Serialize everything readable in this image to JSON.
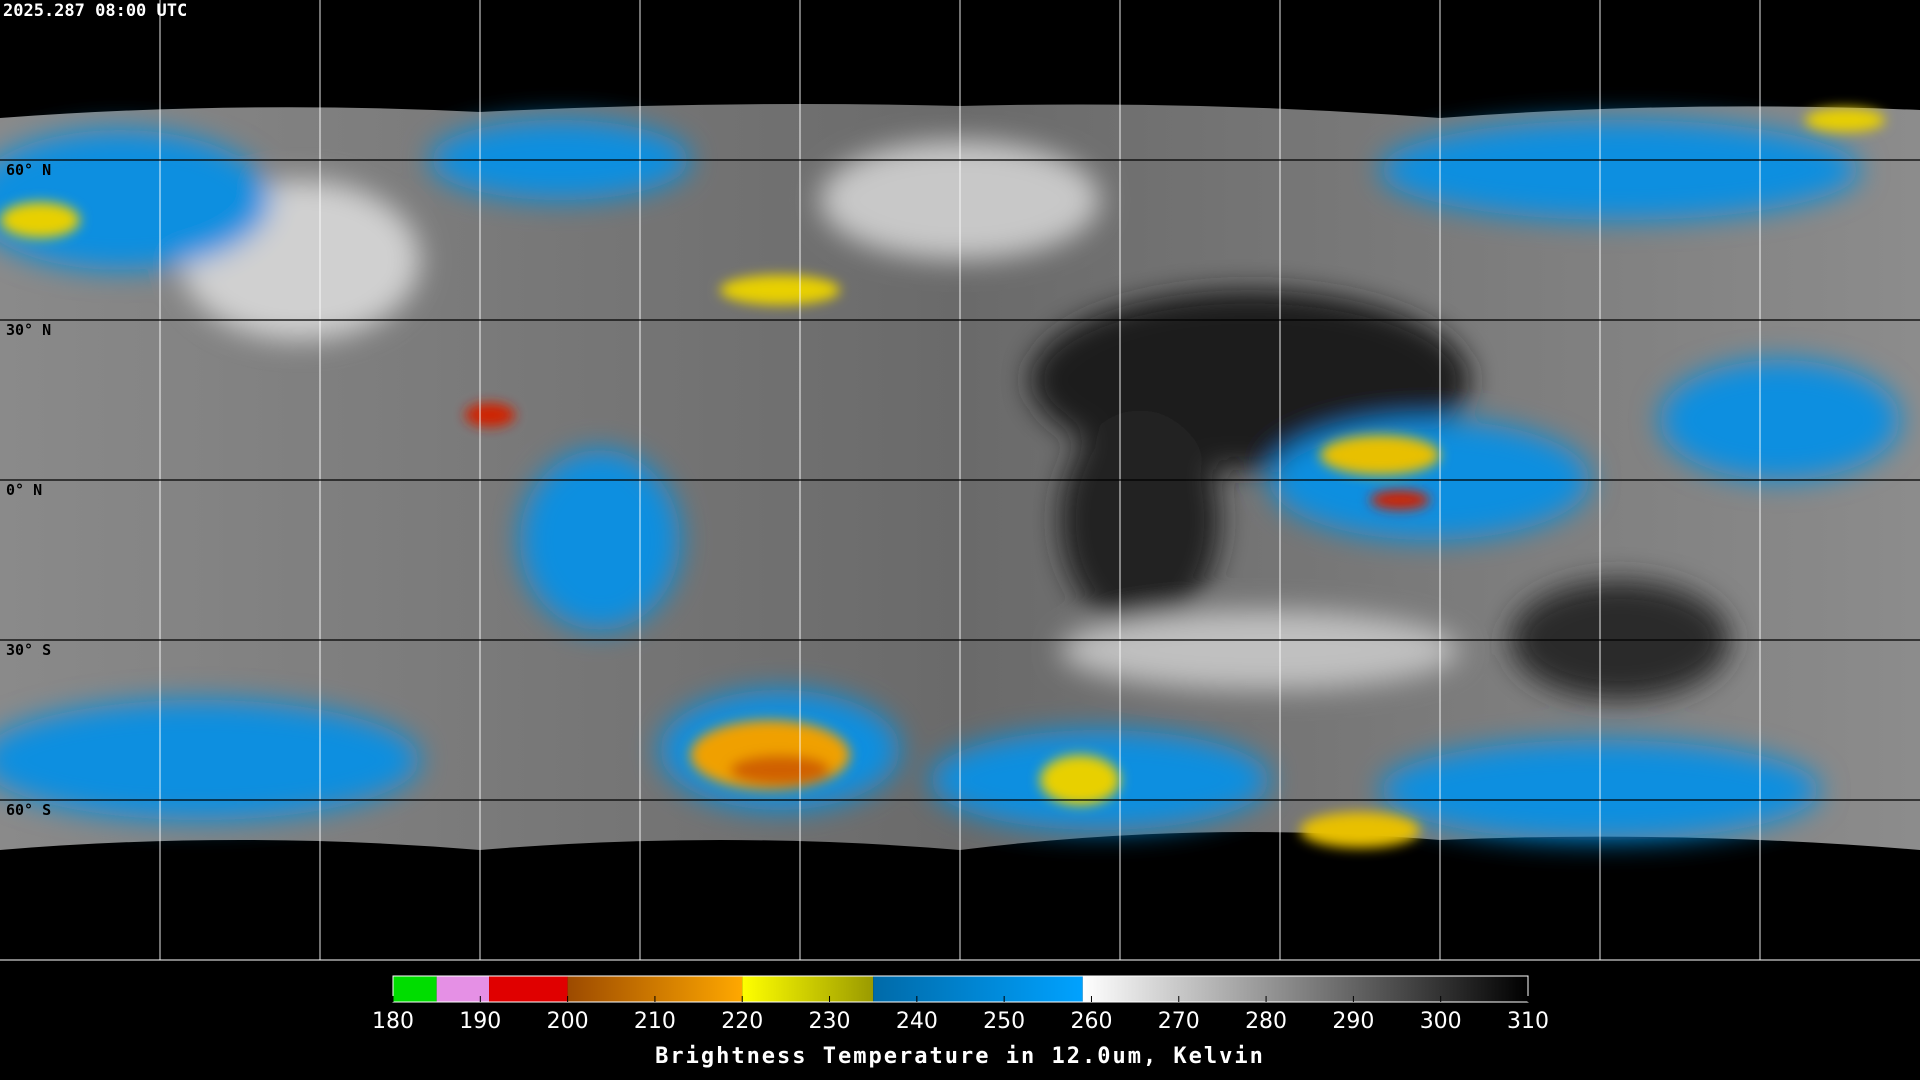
{
  "header": {
    "timestamp": "2025.287 08:00 UTC"
  },
  "map": {
    "lat_labels": [
      "60° N",
      "30° N",
      "0° N",
      "30° S",
      "60° S"
    ]
  },
  "colorbar": {
    "title": "Brightness Temperature in 12.0um, Kelvin",
    "range": [
      180,
      310
    ],
    "ticks": [
      180,
      190,
      200,
      210,
      220,
      230,
      240,
      250,
      260,
      270,
      280,
      290,
      300,
      310
    ],
    "segments": [
      {
        "from": 180,
        "to": 185,
        "colors": [
          "#00dd00",
          "#00dd00"
        ]
      },
      {
        "from": 185,
        "to": 191,
        "colors": [
          "#e590e5",
          "#e590e5"
        ]
      },
      {
        "from": 191,
        "to": 200,
        "colors": [
          "#e00000",
          "#e00000"
        ]
      },
      {
        "from": 200,
        "to": 220,
        "colors": [
          "#9c4a00",
          "#ffa800"
        ]
      },
      {
        "from": 220,
        "to": 235,
        "colors": [
          "#ffff00",
          "#9a9a00"
        ]
      },
      {
        "from": 235,
        "to": 259,
        "colors": [
          "#006aa8",
          "#00a2ff"
        ]
      },
      {
        "from": 259,
        "to": 310,
        "colors": [
          "#ffffff",
          "#000000"
        ]
      }
    ]
  }
}
